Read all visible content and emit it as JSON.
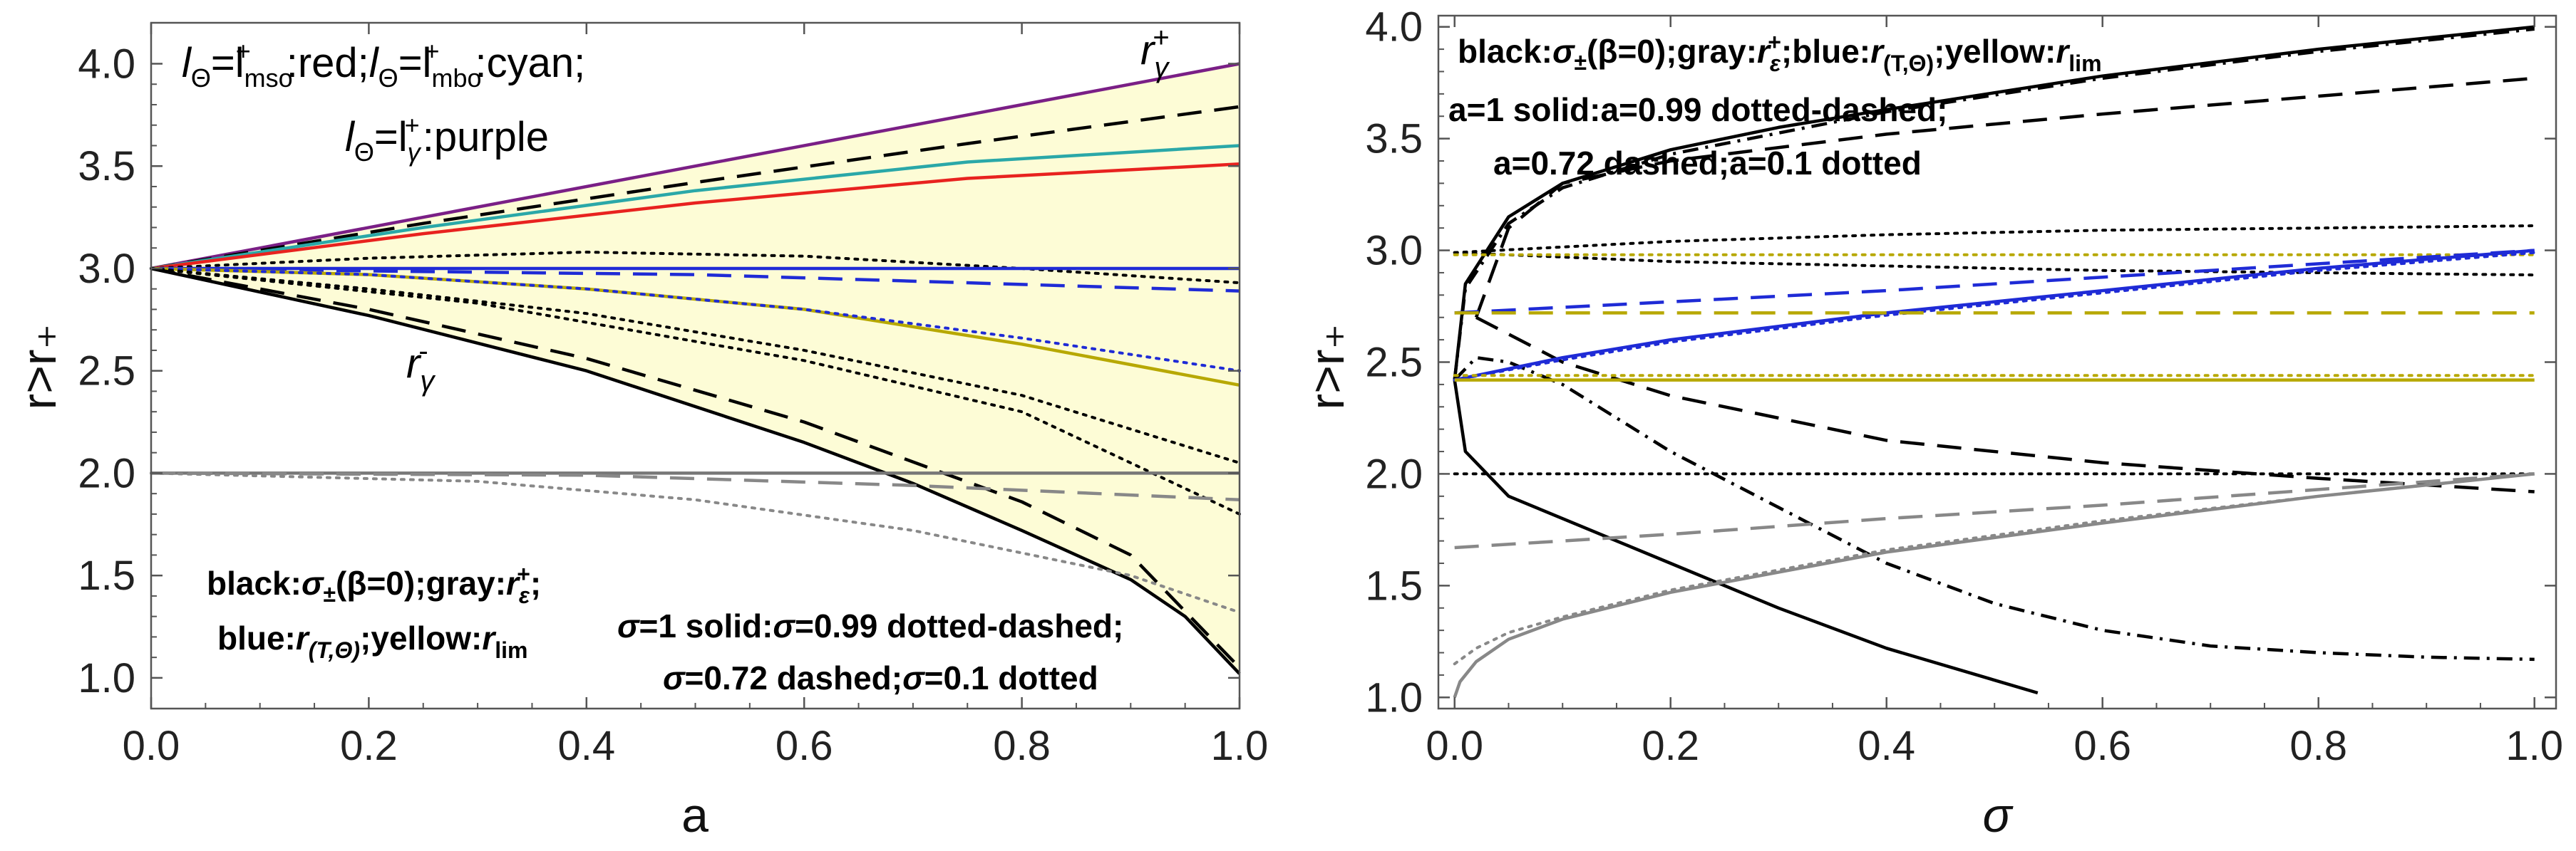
{
  "chart_data": [
    {
      "type": "line",
      "xlabel": "a",
      "ylabel": "r>r₊",
      "xlim": [
        0,
        1
      ],
      "ylim": [
        0.85,
        4.2
      ],
      "xticks": [
        "0.0",
        "0.2",
        "0.4",
        "0.6",
        "0.8",
        "1.0"
      ],
      "yticks": [
        "1.0",
        "1.5",
        "2.0",
        "2.5",
        "3.0",
        "3.5",
        "4.0"
      ],
      "annotations": {
        "ann_top": [
          "l",
          "Θ",
          "=l",
          "mso",
          "+",
          ":red;",
          "l",
          "Θ",
          "=l",
          "mbo",
          "+",
          ":cyan;"
        ],
        "ann_mid": [
          "l",
          "Θ",
          "=l",
          "γ",
          "+",
          ":purple"
        ],
        "label_rplus": [
          "r",
          "γ",
          "+"
        ],
        "label_rminus": [
          "r",
          "γ",
          "-"
        ],
        "legend1": [
          "black:",
          "σ",
          "±",
          "(β=0);gray:",
          "r",
          "ε",
          "+",
          ";"
        ],
        "legend2": [
          "blue:",
          "r",
          "(T,Θ)",
          ";yellow:",
          "r",
          "lim"
        ],
        "legend3": [
          "σ",
          "=1 solid:",
          "σ",
          "=0.99 dotted-dashed;"
        ],
        "legend4": [
          "σ",
          "=0.72 dashed;",
          "σ",
          "=0.1 dotted"
        ]
      },
      "series": [
        {
          "name": "purple_upper",
          "color": "#7a1f86",
          "dash": "solid",
          "x": [
            0,
            0.25,
            0.5,
            0.75,
            1.0
          ],
          "y": [
            3.0,
            3.25,
            3.5,
            3.75,
            4.0
          ]
        },
        {
          "name": "black_dashed_upper",
          "color": "#000000",
          "dash": "dashed",
          "x": [
            0,
            0.25,
            0.5,
            0.75,
            1.0
          ],
          "y": [
            3.0,
            3.22,
            3.42,
            3.61,
            3.79
          ]
        },
        {
          "name": "cyan",
          "color": "#2aa8a8",
          "dash": "solid",
          "x": [
            0,
            0.25,
            0.5,
            0.75,
            1.0
          ],
          "y": [
            3.0,
            3.2,
            3.38,
            3.52,
            3.6
          ]
        },
        {
          "name": "red",
          "color": "#e8221f",
          "dash": "solid",
          "x": [
            0,
            0.25,
            0.5,
            0.75,
            1.0
          ],
          "y": [
            3.0,
            3.17,
            3.32,
            3.44,
            3.51
          ]
        },
        {
          "name": "black_dotted_upper",
          "color": "#000000",
          "dash": "dotted",
          "x": [
            0,
            0.2,
            0.4,
            0.6,
            0.8,
            1.0
          ],
          "y": [
            3.0,
            3.05,
            3.08,
            3.06,
            3.0,
            2.93
          ]
        },
        {
          "name": "blue_solid",
          "color": "#1f2bd6",
          "dash": "solid",
          "x": [
            0,
            1.0
          ],
          "y": [
            3.0,
            3.0
          ]
        },
        {
          "name": "blue_dashed",
          "color": "#1f2bd6",
          "dash": "dashed",
          "x": [
            0,
            0.5,
            1.0
          ],
          "y": [
            3.0,
            2.97,
            2.89
          ]
        },
        {
          "name": "yellow_solid",
          "color": "#b7a800",
          "dash": "solid",
          "x": [
            0,
            0.2,
            0.4,
            0.6,
            0.8,
            1.0
          ],
          "y": [
            3.0,
            2.97,
            2.9,
            2.8,
            2.63,
            2.43
          ]
        },
        {
          "name": "blue_dotted",
          "color": "#1f2bd6",
          "dash": "dotted",
          "x": [
            0,
            0.2,
            0.4,
            0.6,
            0.8,
            1.0
          ],
          "y": [
            3.0,
            2.97,
            2.9,
            2.8,
            2.66,
            2.5
          ]
        },
        {
          "name": "black_dotted_mid",
          "color": "#000000",
          "dash": "dotted",
          "x": [
            0,
            0.2,
            0.4,
            0.6,
            0.8,
            1.0
          ],
          "y": [
            3.0,
            2.9,
            2.78,
            2.6,
            2.38,
            2.05
          ]
        },
        {
          "name": "black_dashed_lower",
          "color": "#000000",
          "dash": "dashed",
          "x": [
            0,
            0.2,
            0.4,
            0.6,
            0.8,
            0.9,
            1.0
          ],
          "y": [
            3.0,
            2.8,
            2.56,
            2.25,
            1.86,
            1.6,
            1.05
          ]
        },
        {
          "name": "black_solid_lower",
          "color": "#000000",
          "dash": "solid",
          "x": [
            0,
            0.2,
            0.4,
            0.6,
            0.7,
            0.8,
            0.9,
            0.95,
            1.0
          ],
          "y": [
            3.0,
            2.77,
            2.5,
            2.15,
            1.95,
            1.72,
            1.48,
            1.3,
            1.02
          ]
        },
        {
          "name": "black_dotted_low",
          "color": "#000000",
          "dash": "dotted",
          "x": [
            0,
            0.3,
            0.6,
            0.8,
            0.9,
            1.0
          ],
          "y": [
            3.0,
            2.83,
            2.55,
            2.3,
            2.05,
            1.8
          ]
        },
        {
          "name": "gray_solid",
          "color": "#777777",
          "dash": "solid",
          "x": [
            0,
            1.0
          ],
          "y": [
            2.0,
            2.0
          ]
        },
        {
          "name": "gray_dashed",
          "color": "#888888",
          "dash": "dashed",
          "x": [
            0,
            0.4,
            0.7,
            1.0
          ],
          "y": [
            2.0,
            1.99,
            1.94,
            1.87
          ]
        },
        {
          "name": "gray_dotted",
          "color": "#888888",
          "dash": "dotted",
          "x": [
            0,
            0.3,
            0.5,
            0.7,
            0.9,
            1.0
          ],
          "y": [
            2.0,
            1.96,
            1.87,
            1.72,
            1.5,
            1.32
          ]
        }
      ],
      "shaded_region": {
        "color": "#fdfcd6",
        "upper": "purple_upper",
        "lower": "black_solid_lower"
      }
    },
    {
      "type": "line",
      "xlabel": "σ",
      "ylabel": "r>r₊",
      "xlim": [
        -0.015,
        1.02
      ],
      "ylim": [
        0.95,
        4.05
      ],
      "xticks": [
        "0.0",
        "0.2",
        "0.4",
        "0.6",
        "0.8",
        "1.0"
      ],
      "yticks": [
        "1.0",
        "1.5",
        "2.0",
        "2.5",
        "3.0",
        "3.5",
        "4.0"
      ],
      "annotations": {
        "legend1": [
          "black:",
          "σ",
          "±",
          "(β=0);gray:",
          "r",
          "ε",
          "+",
          ";blue:",
          "r",
          "(T,Θ)",
          ";yellow:",
          "r",
          "lim"
        ],
        "legend2": "a=1 solid:a=0.99 dotted-dashed;",
        "legend3": "a=0.72 dashed;a=0.1 dotted"
      },
      "series": [
        {
          "name": "black_solid_upper",
          "color": "#000000",
          "dash": "solid",
          "x": [
            0.0,
            0.01,
            0.05,
            0.1,
            0.2,
            0.3,
            0.4,
            0.6,
            0.8,
            1.0
          ],
          "y": [
            2.42,
            2.85,
            3.15,
            3.3,
            3.45,
            3.55,
            3.63,
            3.78,
            3.9,
            4.0
          ]
        },
        {
          "name": "black_solid_lower",
          "color": "#000000",
          "dash": "solid",
          "x": [
            0.0,
            0.01,
            0.05,
            0.1,
            0.2,
            0.3,
            0.4,
            0.54
          ],
          "y": [
            2.42,
            2.1,
            1.9,
            1.8,
            1.6,
            1.4,
            1.22,
            1.02
          ]
        },
        {
          "name": "black_dotdash_upper",
          "color": "#000000",
          "dash": "dashdot",
          "x": [
            0.0,
            0.01,
            0.05,
            0.1,
            0.2,
            0.4,
            0.6,
            0.8,
            1.0
          ],
          "y": [
            2.42,
            2.83,
            3.12,
            3.28,
            3.43,
            3.62,
            3.77,
            3.89,
            3.99
          ]
        },
        {
          "name": "black_dotdash_lower",
          "color": "#000000",
          "dash": "dashdot",
          "x": [
            0.0,
            0.02,
            0.05,
            0.1,
            0.2,
            0.3,
            0.4,
            0.5,
            0.6,
            0.7,
            0.8,
            0.9,
            1.0
          ],
          "y": [
            2.42,
            2.52,
            2.5,
            2.4,
            2.1,
            1.85,
            1.6,
            1.42,
            1.3,
            1.23,
            1.2,
            1.18,
            1.17
          ]
        },
        {
          "name": "black_dashed_upper",
          "color": "#000000",
          "dash": "dashed",
          "x": [
            0.02,
            0.05,
            0.1,
            0.2,
            0.4,
            0.6,
            0.8,
            1.0
          ],
          "y": [
            2.7,
            3.1,
            3.3,
            3.4,
            3.52,
            3.61,
            3.69,
            3.77
          ]
        },
        {
          "name": "black_dashed_lower",
          "color": "#000000",
          "dash": "dashed",
          "x": [
            0.02,
            0.1,
            0.2,
            0.3,
            0.4,
            0.6,
            0.8,
            1.0
          ],
          "y": [
            2.7,
            2.5,
            2.35,
            2.25,
            2.15,
            2.05,
            1.98,
            1.92
          ]
        },
        {
          "name": "black_dotted_upper",
          "color": "#000000",
          "dash": "dotted",
          "x": [
            0,
            0.2,
            0.4,
            0.6,
            0.8,
            1.0
          ],
          "y": [
            2.99,
            3.04,
            3.07,
            3.09,
            3.1,
            3.11
          ]
        },
        {
          "name": "black_dotted_lower",
          "color": "#000000",
          "dash": "dotted",
          "x": [
            0,
            0.2,
            0.4,
            0.6,
            0.8,
            1.0
          ],
          "y": [
            2.99,
            2.95,
            2.93,
            2.91,
            2.9,
            2.89
          ]
        },
        {
          "name": "yellow_dotted",
          "color": "#b7a800",
          "dash": "dotted",
          "x": [
            0,
            1.0
          ],
          "y": [
            2.98,
            2.98
          ]
        },
        {
          "name": "black_dotted_2",
          "color": "#000000",
          "dash": "dotted",
          "x": [
            0,
            1.0
          ],
          "y": [
            2.0,
            2.0
          ]
        },
        {
          "name": "blue_solid",
          "color": "#1f2bd6",
          "dash": "solid",
          "x": [
            0.0,
            0.1,
            0.2,
            0.4,
            0.6,
            0.8,
            1.0
          ],
          "y": [
            2.42,
            2.52,
            2.6,
            2.72,
            2.82,
            2.92,
            3.0
          ]
        },
        {
          "name": "blue_dotted",
          "color": "#1f2bd6",
          "dash": "dotted",
          "x": [
            0.0,
            0.1,
            0.2,
            0.4,
            0.6,
            0.8,
            1.0
          ],
          "y": [
            2.42,
            2.51,
            2.59,
            2.71,
            2.81,
            2.91,
            2.99
          ]
        },
        {
          "name": "blue_dashed",
          "color": "#1f2bd6",
          "dash": "dashed",
          "x": [
            0.0,
            0.2,
            0.4,
            0.6,
            0.8,
            1.0
          ],
          "y": [
            2.72,
            2.77,
            2.82,
            2.88,
            2.94,
            3.0
          ]
        },
        {
          "name": "yellow_dashed",
          "color": "#b7a800",
          "dash": "dashed",
          "x": [
            0,
            1.0
          ],
          "y": [
            2.72,
            2.72
          ]
        },
        {
          "name": "yellow_solid",
          "color": "#b7a800",
          "dash": "solid",
          "x": [
            0,
            1.0
          ],
          "y": [
            2.42,
            2.42
          ]
        },
        {
          "name": "gray_solid",
          "color": "#888888",
          "dash": "solid",
          "x": [
            0.0,
            0.005,
            0.02,
            0.05,
            0.1,
            0.2,
            0.4,
            0.6,
            0.8,
            1.0
          ],
          "y": [
            1.0,
            1.07,
            1.16,
            1.26,
            1.35,
            1.47,
            1.65,
            1.78,
            1.9,
            2.0
          ]
        },
        {
          "name": "gray_dotted",
          "color": "#888888",
          "dash": "dotted",
          "x": [
            0.0,
            0.02,
            0.05,
            0.1,
            0.2,
            0.4,
            0.6,
            0.8,
            1.0
          ],
          "y": [
            1.15,
            1.22,
            1.29,
            1.36,
            1.48,
            1.66,
            1.79,
            1.9,
            2.0
          ]
        },
        {
          "name": "gray_dashed",
          "color": "#888888",
          "dash": "dashed",
          "x": [
            0.0,
            0.2,
            0.4,
            0.6,
            0.8,
            1.0
          ],
          "y": [
            1.67,
            1.73,
            1.8,
            1.86,
            1.93,
            2.0
          ]
        },
        {
          "name": "yellow_dotted_2",
          "color": "#b7a800",
          "dash": "dotted",
          "x": [
            0,
            1.0
          ],
          "y": [
            2.44,
            2.44
          ]
        }
      ]
    }
  ]
}
